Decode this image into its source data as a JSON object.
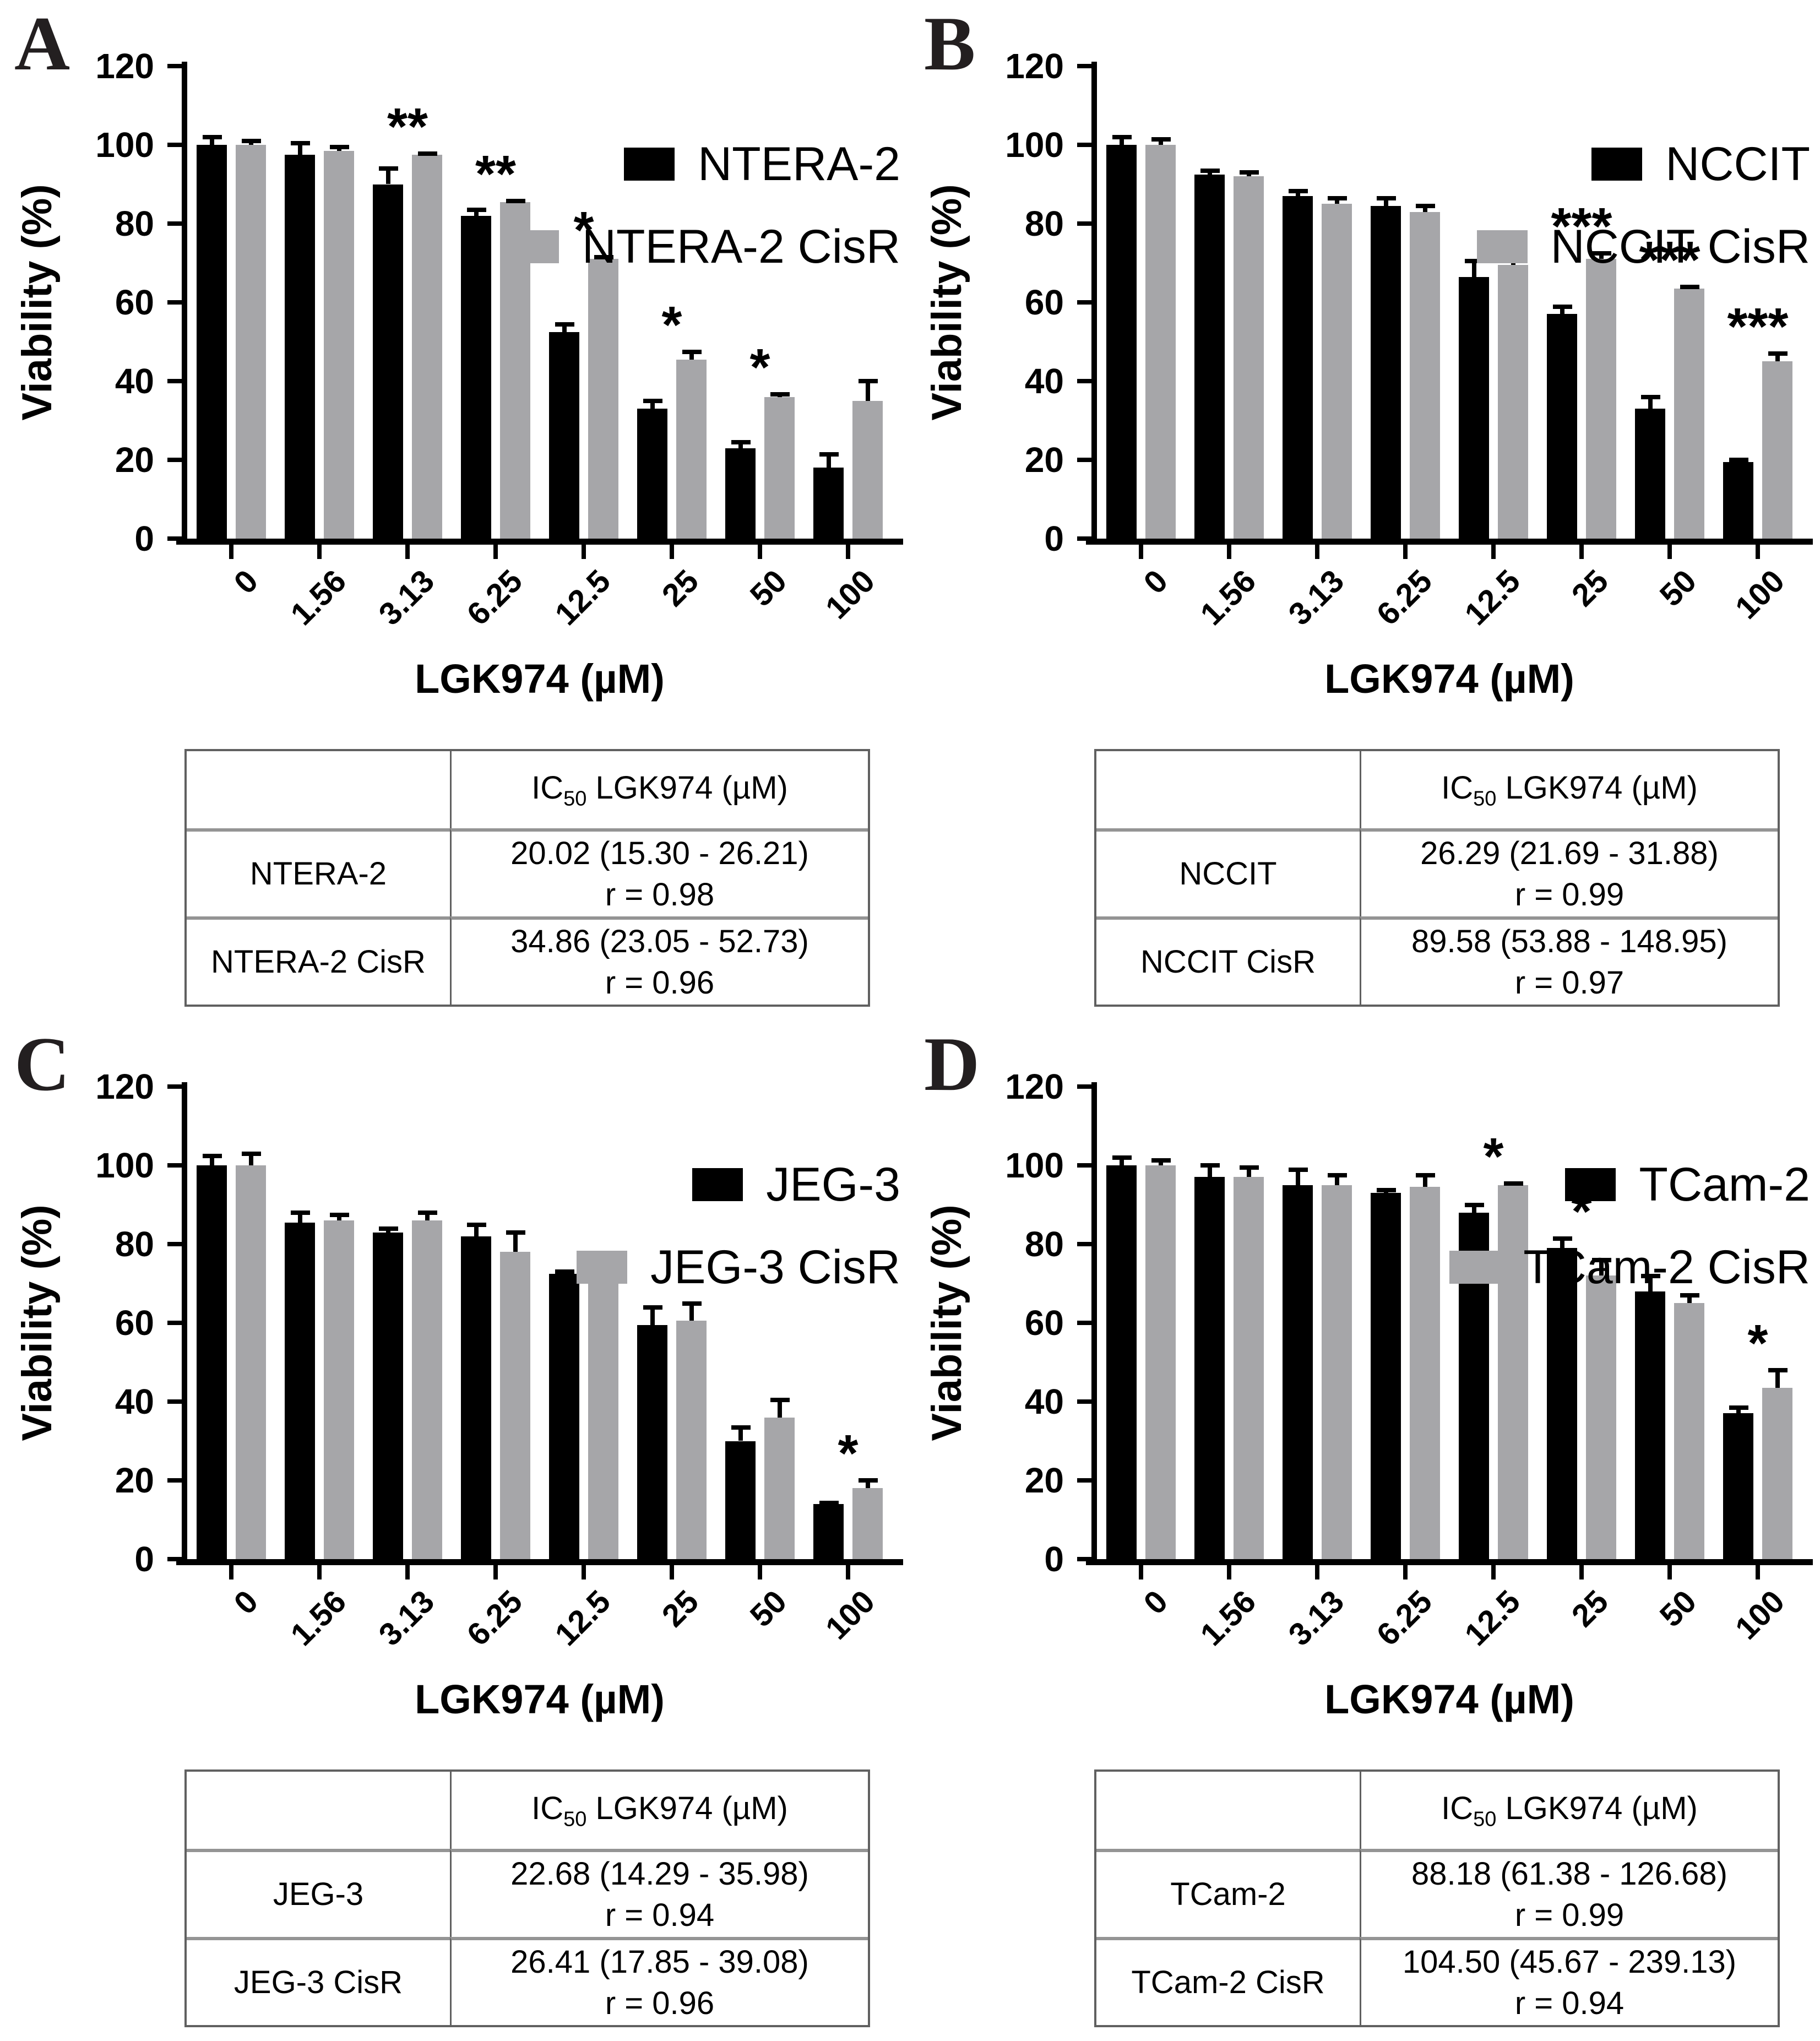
{
  "figure": {
    "background": "#ffffff",
    "axis_color": "#000000",
    "black_series_color": "#000000",
    "gray_series_color": "#a6a6a9",
    "panel_letter_color": "#231f20"
  },
  "chart_data": [
    {
      "panel": "A",
      "type": "bar",
      "xlabel": "LGK974 (µM)",
      "ylabel": "Viability (%)",
      "ylim": [
        0,
        120
      ],
      "yticks": [
        0,
        20,
        40,
        60,
        80,
        100,
        120
      ],
      "grid": "off",
      "legend_position": "top-right",
      "categories": [
        "0",
        "1.56",
        "3.13",
        "6.25",
        "12.5",
        "25",
        "50",
        "100"
      ],
      "series": [
        {
          "name": "NTERA-2",
          "color": "#000000",
          "values": [
            100,
            97.5,
            90,
            82,
            52.5,
            33,
            23,
            18
          ],
          "errors": [
            2.5,
            3.5,
            4.5,
            2,
            2.5,
            2.5,
            2,
            4
          ]
        },
        {
          "name": "NTERA-2 CisR",
          "color": "#a6a6a9",
          "values": [
            100,
            98.5,
            97.5,
            85.5,
            71,
            45.5,
            36,
            35
          ],
          "errors": [
            1.5,
            1.5,
            0.8,
            0.8,
            1,
            2.5,
            1.2,
            5.5
          ]
        }
      ],
      "significance": [
        {
          "index": 2,
          "category": "3.13",
          "text": "**"
        },
        {
          "index": 3,
          "category": "6.25",
          "text": "**"
        },
        {
          "index": 4,
          "category": "12.5",
          "text": "*"
        },
        {
          "index": 5,
          "category": "25",
          "text": "*"
        },
        {
          "index": 6,
          "category": "50",
          "text": "*"
        }
      ],
      "table": {
        "header": {
          "pre": "IC",
          "sub": "50",
          "post": " LGK974 (µM)"
        },
        "rows": [
          {
            "name": "NTERA-2",
            "ic50": "20.02 (15.30 - 26.21)",
            "r": "r = 0.98"
          },
          {
            "name": "NTERA-2 CisR",
            "ic50": "34.86 (23.05 - 52.73)",
            "r": "r = 0.96"
          }
        ]
      }
    },
    {
      "panel": "B",
      "type": "bar",
      "xlabel": "LGK974 (µM)",
      "ylabel": "Viability (%)",
      "ylim": [
        0,
        120
      ],
      "yticks": [
        0,
        20,
        40,
        60,
        80,
        100,
        120
      ],
      "grid": "off",
      "legend_position": "top-right",
      "categories": [
        "0",
        "1.56",
        "3.13",
        "6.25",
        "12.5",
        "25",
        "50",
        "100"
      ],
      "series": [
        {
          "name": "NCCIT",
          "color": "#000000",
          "values": [
            100,
            92.5,
            87,
            84.5,
            66.5,
            57,
            33,
            19.5
          ],
          "errors": [
            2.5,
            1.5,
            1.8,
            2.5,
            4.5,
            2.5,
            3.5,
            1
          ]
        },
        {
          "name": "NCCIT CisR",
          "color": "#a6a6a9",
          "values": [
            100,
            92,
            85,
            83,
            69.5,
            71,
            63.5,
            45
          ],
          "errors": [
            2,
            1.5,
            2,
            2,
            4,
            2,
            1,
            2.5
          ]
        }
      ],
      "significance": [
        {
          "index": 5,
          "category": "25",
          "text": "***"
        },
        {
          "index": 6,
          "category": "50",
          "text": "***"
        },
        {
          "index": 7,
          "category": "100",
          "text": "***"
        }
      ],
      "table": {
        "header": {
          "pre": "IC",
          "sub": "50",
          "post": " LGK974 (µM)"
        },
        "rows": [
          {
            "name": "NCCIT",
            "ic50": "26.29 (21.69 - 31.88)",
            "r": "r = 0.99"
          },
          {
            "name": "NCCIT CisR",
            "ic50": "89.58 (53.88 - 148.95)",
            "r": "r = 0.97"
          }
        ]
      }
    },
    {
      "panel": "C",
      "type": "bar",
      "xlabel": "LGK974 (µM)",
      "ylabel": "Viability (%)",
      "ylim": [
        0,
        120
      ],
      "yticks": [
        0,
        20,
        40,
        60,
        80,
        100,
        120
      ],
      "grid": "off",
      "legend_position": "top-right",
      "categories": [
        "0",
        "1.56",
        "3.13",
        "6.25",
        "12.5",
        "25",
        "50",
        "100"
      ],
      "series": [
        {
          "name": "JEG-3",
          "color": "#000000",
          "values": [
            100,
            85.5,
            83,
            82,
            72.5,
            59.5,
            30,
            14
          ],
          "errors": [
            3,
            3,
            1.5,
            3.5,
            1,
            5,
            4,
            0.8
          ]
        },
        {
          "name": "JEG-3 CisR",
          "color": "#a6a6a9",
          "values": [
            100,
            86,
            86,
            78,
            71,
            60.5,
            36,
            18
          ],
          "errors": [
            3.5,
            2,
            2.5,
            5.5,
            2.5,
            5,
            5,
            2.5
          ]
        }
      ],
      "significance": [
        {
          "index": 7,
          "category": "100",
          "text": "*"
        }
      ],
      "table": {
        "header": {
          "pre": "IC",
          "sub": "50",
          "post": " LGK974 (µM)"
        },
        "rows": [
          {
            "name": "JEG-3",
            "ic50": "22.68 (14.29 - 35.98)",
            "r": "r = 0.94"
          },
          {
            "name": "JEG-3 CisR",
            "ic50": "26.41 (17.85 - 39.08)",
            "r": "r = 0.96"
          }
        ]
      }
    },
    {
      "panel": "D",
      "type": "bar",
      "xlabel": "LGK974 (µM)",
      "ylabel": "Viability (%)",
      "ylim": [
        0,
        120
      ],
      "yticks": [
        0,
        20,
        40,
        60,
        80,
        100,
        120
      ],
      "grid": "off",
      "legend_position": "top-right",
      "categories": [
        "0",
        "1.56",
        "3.13",
        "6.25",
        "12.5",
        "25",
        "50",
        "100"
      ],
      "series": [
        {
          "name": "TCam-2",
          "color": "#000000",
          "values": [
            100,
            97,
            95,
            93,
            88,
            79,
            68,
            37
          ],
          "errors": [
            2.5,
            3.5,
            4.5,
            1.2,
            2.5,
            3,
            4.5,
            2
          ]
        },
        {
          "name": "TCam-2 CisR",
          "color": "#a6a6a9",
          "values": [
            100,
            97,
            95,
            94.5,
            95,
            72,
            65,
            43.5
          ],
          "errors": [
            1.8,
            3,
            3,
            3.5,
            1,
            4.5,
            2.5,
            5
          ]
        }
      ],
      "significance": [
        {
          "index": 4,
          "category": "12.5",
          "text": "*"
        },
        {
          "index": 5,
          "category": "25",
          "text": "*"
        },
        {
          "index": 7,
          "category": "100",
          "text": "*"
        }
      ],
      "table": {
        "header": {
          "pre": "IC",
          "sub": "50",
          "post": " LGK974 (µM)"
        },
        "rows": [
          {
            "name": "TCam-2",
            "ic50": "88.18 (61.38 - 126.68)",
            "r": "r = 0.99"
          },
          {
            "name": "TCam-2 CisR",
            "ic50": "104.50 (45.67 - 239.13)",
            "r": "r = 0.94"
          }
        ]
      }
    }
  ]
}
